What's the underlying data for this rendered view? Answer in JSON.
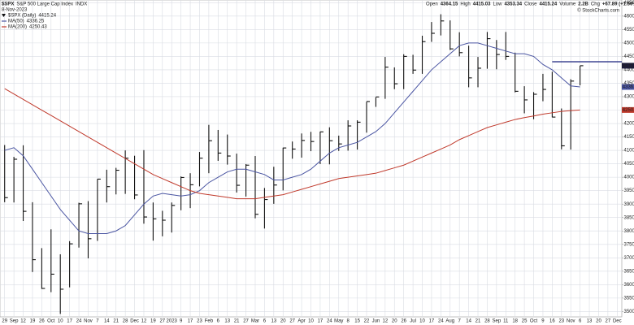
{
  "chart_data": {
    "type": "hlc",
    "title": "$SPX",
    "subtitle": "S&P 500 Large Cap Index",
    "exchange": "INDX",
    "date": "8-Nov-2023",
    "credit": "© StockCharts.com",
    "quote": [
      {
        "label": "Open",
        "value": 4364.15
      },
      {
        "label": "High",
        "value": 4415.03
      },
      {
        "label": "Low",
        "value": 4353.34
      },
      {
        "label": "Close",
        "value": 4415.24
      },
      {
        "label": "Volume",
        "value": "2.2B"
      },
      {
        "label": "Chg",
        "value": "+67.89 (+1.56%)"
      }
    ],
    "categories": [
      "29",
      "Sep",
      "12",
      "19",
      "26",
      "Oct",
      "10",
      "17",
      "24",
      "Nov",
      "7",
      "14",
      "21",
      "28",
      "Dec",
      "12",
      "19",
      "27",
      "2023",
      "9",
      "17",
      "23",
      "Feb",
      "6",
      "13",
      "21",
      "27",
      "Mar",
      "6",
      "13",
      "20",
      "27",
      "Apr",
      "10",
      "17",
      "24",
      "May",
      "8",
      "15",
      "22",
      "Jun",
      "12",
      "20",
      "26",
      "Jul",
      "10",
      "17",
      "24",
      "Aug",
      "7",
      "14",
      "21",
      "28",
      "Sep",
      "11",
      "18",
      "25",
      "Oct",
      "9",
      "16",
      "23",
      "Nov",
      "6",
      "13",
      "20",
      "27",
      "Dec"
    ],
    "series": [
      {
        "name": "$SPX (Daily)",
        "color": "#111111",
        "last": 4415.24,
        "high": [
          4120,
          4076,
          4119,
          3907,
          3736,
          3806,
          3713,
          3762,
          3905,
          3911,
          3993,
          4028,
          4035,
          4100,
          4080,
          4101,
          3906,
          3875,
          3906,
          4003,
          4015,
          4094,
          4195,
          4176,
          4159,
          4088,
          4049,
          4079,
          3960,
          4039,
          4110,
          4133,
          4163,
          4169,
          4170,
          4186,
          4155,
          4212,
          4212,
          4281,
          4298,
          4448,
          4409,
          4458,
          4456,
          4527,
          4578,
          4607,
          4584,
          4540,
          4490,
          4448,
          4541,
          4511,
          4541,
          4464,
          4339,
          4317,
          4385,
          4393,
          4256,
          4365,
          4415.03,
          null,
          null,
          null,
          null
        ],
        "low": [
          3907,
          3906,
          3837,
          3647,
          3584,
          3572,
          3491,
          3590,
          3738,
          3698,
          3763,
          3906,
          3936,
          3938,
          3918,
          3827,
          3764,
          3780,
          3794,
          3877,
          3885,
          3966,
          4015,
          4061,
          4047,
          3943,
          3928,
          3847,
          3809,
          3901,
          3951,
          4069,
          4073,
          4097,
          4049,
          4048,
          4098,
          4099,
          4103,
          4166,
          4262,
          4292,
          4328,
          4328,
          4385,
          4385,
          4504,
          4528,
          4474,
          4450,
          4335,
          4335,
          4404,
          4402,
          4437,
          4316,
          4238,
          4216,
          4283,
          4223,
          4104,
          4103,
          4342,
          null,
          null,
          null,
          null
        ],
        "close": [
          3924,
          4067,
          3873,
          3693,
          3586,
          3639,
          3583,
          3752,
          3901,
          3771,
          3993,
          3965,
          4026,
          4071,
          3934,
          3852,
          3845,
          3840,
          3895,
          3999,
          3972,
          4071,
          4136,
          4090,
          4079,
          3970,
          4045,
          3862,
          3917,
          3971,
          4109,
          4105,
          4137,
          4133,
          4169,
          4136,
          4124,
          4191,
          4205,
          4282,
          4299,
          4410,
          4348,
          4450,
          4399,
          4505,
          4536,
          4582,
          4478,
          4464,
          4370,
          4406,
          4516,
          4457,
          4450,
          4320,
          4288,
          4309,
          4327,
          4224,
          4117,
          4358,
          4415.24,
          null,
          null,
          null,
          null
        ]
      },
      {
        "name": "MA(50)",
        "color": "#4a55a2",
        "last": 4336.25,
        "values": [
          4100,
          4110,
          4080,
          4030,
          3980,
          3930,
          3880,
          3840,
          3800,
          3790,
          3790,
          3790,
          3800,
          3820,
          3860,
          3900,
          3930,
          3940,
          3935,
          3930,
          3935,
          3950,
          3980,
          4000,
          4020,
          4030,
          4030,
          4020,
          4010,
          3990,
          3990,
          4000,
          4010,
          4030,
          4060,
          4090,
          4110,
          4120,
          4130,
          4150,
          4170,
          4200,
          4240,
          4280,
          4320,
          4360,
          4400,
          4430,
          4460,
          4490,
          4500,
          4500,
          4490,
          4480,
          4470,
          4460,
          4460,
          4450,
          4420,
          4400,
          4370,
          4340,
          4336.25,
          null,
          null,
          null,
          null
        ]
      },
      {
        "name": "MA(200)",
        "color": "#c0392b",
        "last": 4250.43,
        "values": [
          4330,
          4310,
          4290,
          4270,
          4250,
          4230,
          4210,
          4190,
          4170,
          4150,
          4130,
          4110,
          4090,
          4070,
          4050,
          4030,
          4010,
          3995,
          3980,
          3965,
          3950,
          3940,
          3935,
          3930,
          3925,
          3920,
          3920,
          3920,
          3925,
          3930,
          3935,
          3945,
          3955,
          3965,
          3975,
          3985,
          3995,
          4000,
          4005,
          4010,
          4015,
          4025,
          4035,
          4045,
          4060,
          4075,
          4090,
          4105,
          4120,
          4140,
          4155,
          4170,
          4185,
          4195,
          4205,
          4215,
          4222,
          4228,
          4235,
          4240,
          4245,
          4248,
          4250.43,
          null,
          null,
          null,
          null
        ]
      }
    ],
    "hline": {
      "value": 4430,
      "color": "#1a237e"
    },
    "ylim": [
      3480,
      4660
    ],
    "yticks": [
      3500,
      3550,
      3600,
      3650,
      3700,
      3750,
      3800,
      3850,
      3900,
      3950,
      4000,
      4050,
      4100,
      4150,
      4200,
      4250,
      4300,
      4350,
      4400,
      4450,
      4500,
      4550,
      4600,
      4650
    ],
    "grid": true
  }
}
